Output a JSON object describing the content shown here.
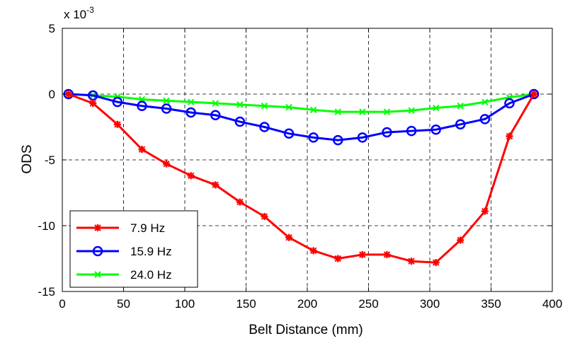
{
  "chart_data": {
    "type": "line",
    "xlabel": "Belt Distance (mm)",
    "ylabel": "ODS",
    "y_multiplier_label": "x 10",
    "y_multiplier_exponent": "-3",
    "xlim": [
      0,
      400
    ],
    "ylim": [
      -15,
      5
    ],
    "x_ticks": [
      0,
      50,
      100,
      150,
      200,
      250,
      300,
      350,
      400
    ],
    "y_ticks": [
      5,
      0,
      -5,
      -10,
      -15
    ],
    "grid": true,
    "legend_position": "bottom-left",
    "x": [
      5,
      25,
      45,
      65,
      85,
      105,
      125,
      145,
      165,
      185,
      205,
      225,
      245,
      265,
      285,
      305,
      325,
      345,
      365,
      385
    ],
    "series": [
      {
        "name": "7.9 Hz",
        "color": "#ff0000",
        "marker": "star",
        "values": [
          0,
          -0.7,
          -2.3,
          -4.2,
          -5.3,
          -6.2,
          -6.9,
          -8.2,
          -9.3,
          -10.9,
          -11.9,
          -12.5,
          -12.2,
          -12.2,
          -12.7,
          -12.8,
          -11.1,
          -8.9,
          -3.2,
          0
        ]
      },
      {
        "name": "15.9 Hz",
        "color": "#0000ff",
        "marker": "circle",
        "values": [
          0,
          -0.1,
          -0.6,
          -0.9,
          -1.1,
          -1.4,
          -1.6,
          -2.1,
          -2.5,
          -3.0,
          -3.3,
          -3.5,
          -3.3,
          -2.9,
          -2.8,
          -2.7,
          -2.3,
          -1.9,
          -0.7,
          0
        ]
      },
      {
        "name": "24.0 Hz",
        "color": "#00ff00",
        "marker": "x",
        "values": [
          0,
          -0.1,
          -0.2,
          -0.4,
          -0.5,
          -0.6,
          -0.7,
          -0.8,
          -0.9,
          -1.0,
          -1.2,
          -1.35,
          -1.35,
          -1.35,
          -1.25,
          -1.05,
          -0.9,
          -0.6,
          -0.25,
          0
        ]
      }
    ]
  }
}
